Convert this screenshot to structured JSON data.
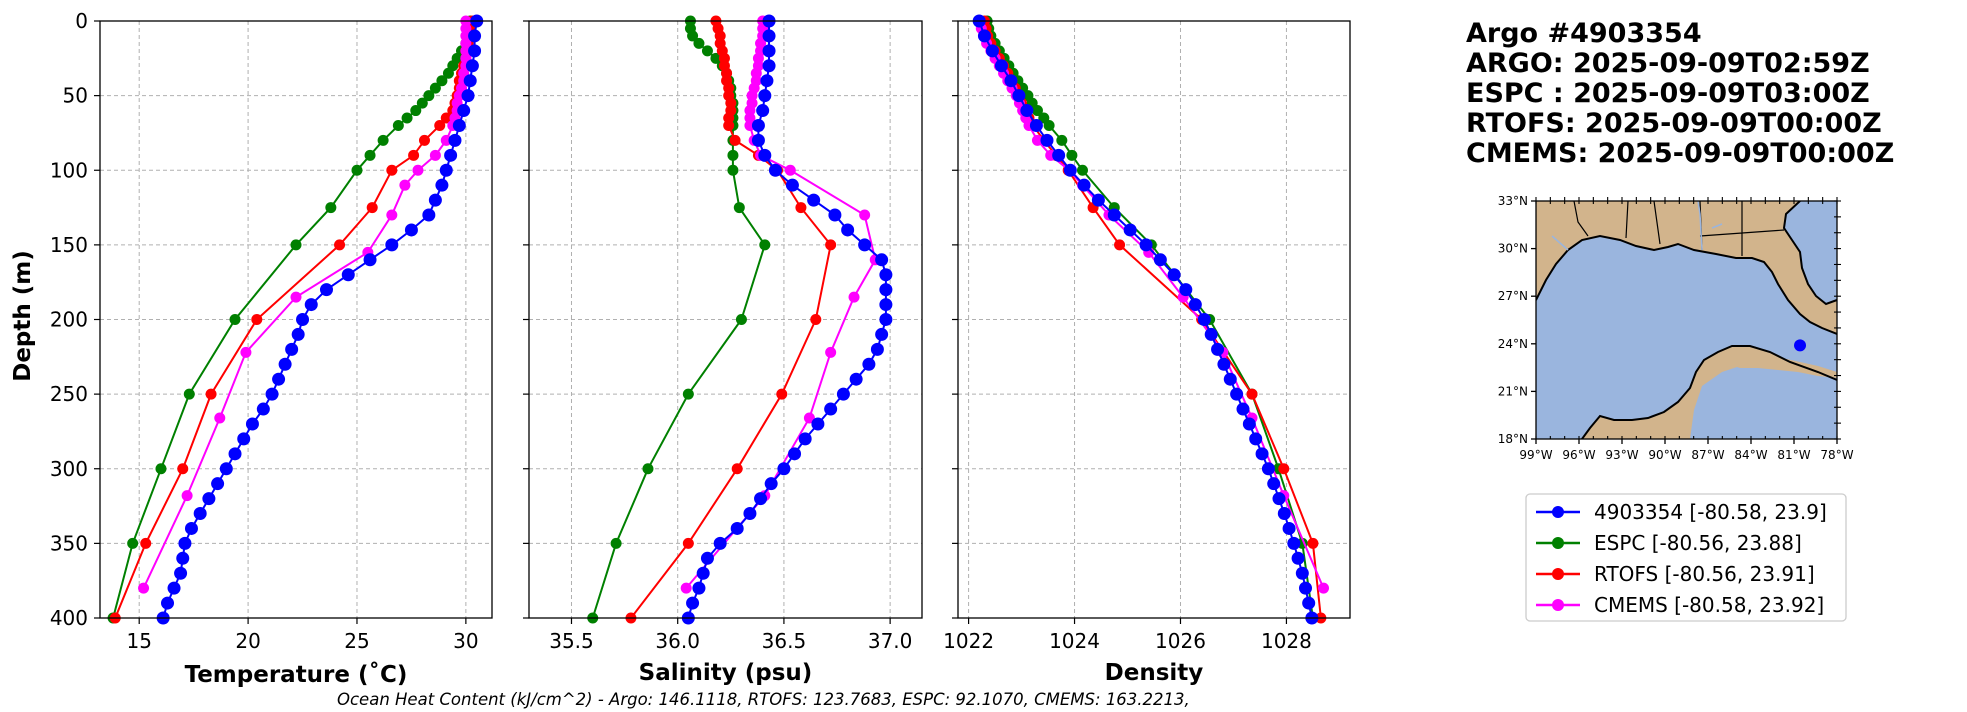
{
  "info": {
    "lines": [
      "Argo #4903354",
      "ARGO: 2025-09-09T02:59Z",
      "ESPC : 2025-09-09T03:00Z",
      "RTOFS: 2025-09-09T00:00Z",
      "CMEMS: 2025-09-09T00:00Z"
    ]
  },
  "footer": "Ocean Heat Content (kJ/cm^2) - Argo: 146.1118,  RTOFS: 123.7683,  ESPC: 92.1070,  CMEMS: 163.2213,",
  "colors": {
    "argo": "#0000ff",
    "espc": "#008000",
    "rtofs": "#ff0000",
    "cmems": "#ff00ff",
    "land": "#d2b48c",
    "ocean": "#9ab5de"
  },
  "legend": [
    {
      "key": "argo",
      "label": "4903354 [-80.58, 23.9]"
    },
    {
      "key": "espc",
      "label": "ESPC [-80.56, 23.88]"
    },
    {
      "key": "rtofs",
      "label": "RTOFS [-80.56, 23.91]"
    },
    {
      "key": "cmems",
      "label": "CMEMS [-80.58, 23.92]"
    }
  ],
  "map": {
    "lat_ticks": [
      "33°N",
      "30°N",
      "27°N",
      "24°N",
      "21°N",
      "18°N"
    ],
    "lon_ticks": [
      "99°W",
      "96°W",
      "93°W",
      "90°W",
      "87°W",
      "84°W",
      "81°W",
      "78°W"
    ],
    "lon_range": [
      -99,
      -78
    ],
    "lat_range": [
      18,
      33
    ],
    "float_position": {
      "lon": -80.58,
      "lat": 23.9
    }
  },
  "chart_data": [
    {
      "type": "line",
      "title": "",
      "xlabel": "Temperature (˚C)",
      "ylabel": "Depth (m)",
      "xlim": [
        13.2,
        31.2
      ],
      "ylim": [
        400,
        0
      ],
      "xticks": [
        15,
        20,
        25,
        30
      ],
      "yticks": [
        0,
        50,
        100,
        150,
        200,
        250,
        300,
        350,
        400
      ],
      "grid": true,
      "series": [
        {
          "name": "ESPC",
          "key": "espc",
          "marker_size": 5.5,
          "depth": [
            0,
            5,
            10,
            15,
            20,
            25,
            30,
            35,
            40,
            45,
            50,
            55,
            60,
            65,
            70,
            80,
            90,
            100,
            125,
            150,
            200,
            250,
            300,
            350,
            400
          ],
          "values": [
            30.2,
            30.2,
            30.1,
            30.0,
            29.8,
            29.6,
            29.4,
            29.2,
            28.9,
            28.6,
            28.3,
            28.0,
            27.7,
            27.3,
            26.9,
            26.2,
            25.6,
            25.0,
            23.8,
            22.2,
            19.4,
            17.3,
            16.0,
            14.7,
            13.8
          ]
        },
        {
          "name": "RTOFS",
          "key": "rtofs",
          "marker_size": 5.5,
          "depth": [
            0,
            5,
            10,
            15,
            20,
            25,
            30,
            35,
            40,
            45,
            50,
            55,
            60,
            65,
            70,
            80,
            90,
            100,
            125,
            150,
            200,
            250,
            300,
            350,
            400
          ],
          "values": [
            30.3,
            30.2,
            30.2,
            30.1,
            30.0,
            30.0,
            29.9,
            29.8,
            29.7,
            29.7,
            29.6,
            29.5,
            29.4,
            29.1,
            28.8,
            28.1,
            27.6,
            26.6,
            25.7,
            24.2,
            20.4,
            18.3,
            17.0,
            15.3,
            13.9
          ]
        },
        {
          "name": "CMEMS",
          "key": "cmems",
          "marker_size": 5.5,
          "depth": [
            0,
            5,
            10,
            15,
            20,
            25,
            30,
            35,
            40,
            45,
            50,
            55,
            60,
            65,
            70,
            80,
            90,
            100,
            110,
            130,
            155,
            185,
            222,
            266,
            318,
            380
          ],
          "values": [
            30.0,
            30.0,
            30.0,
            30.0,
            30.0,
            30.0,
            30.0,
            29.9,
            29.9,
            29.8,
            29.7,
            29.6,
            29.6,
            29.5,
            29.4,
            29.1,
            28.6,
            27.8,
            27.2,
            26.6,
            25.5,
            22.2,
            19.9,
            18.7,
            17.2,
            15.2
          ]
        },
        {
          "name": "Argo 4903354",
          "key": "argo",
          "marker_size": 6.5,
          "depth": [
            0,
            10,
            20,
            30,
            40,
            50,
            60,
            70,
            80,
            90,
            100,
            110,
            120,
            130,
            140,
            150,
            160,
            170,
            180,
            190,
            200,
            210,
            220,
            230,
            240,
            250,
            260,
            270,
            280,
            290,
            300,
            310,
            320,
            330,
            340,
            350,
            360,
            370,
            380,
            390,
            400
          ],
          "values": [
            30.5,
            30.4,
            30.4,
            30.3,
            30.2,
            30.1,
            29.9,
            29.7,
            29.5,
            29.3,
            29.1,
            28.9,
            28.6,
            28.3,
            27.5,
            26.6,
            25.6,
            24.6,
            23.6,
            22.9,
            22.5,
            22.3,
            22.0,
            21.7,
            21.4,
            21.1,
            20.7,
            20.2,
            19.8,
            19.4,
            19.0,
            18.6,
            18.2,
            17.8,
            17.4,
            17.1,
            17.0,
            16.9,
            16.6,
            16.3,
            16.1
          ]
        }
      ]
    },
    {
      "type": "line",
      "title": "",
      "xlabel": "Salinity (psu)",
      "ylabel": "",
      "xlim": [
        35.3,
        37.15
      ],
      "ylim": [
        400,
        0
      ],
      "xticks": [
        35.5,
        36.0,
        36.5,
        37.0
      ],
      "xticklabels": [
        "35.5",
        "36.0",
        "36.5",
        "37.0"
      ],
      "yticks": [
        0,
        50,
        100,
        150,
        200,
        250,
        300,
        350,
        400
      ],
      "grid": true,
      "series": [
        {
          "name": "ESPC",
          "key": "espc",
          "marker_size": 5.5,
          "depth": [
            0,
            5,
            10,
            15,
            20,
            25,
            30,
            35,
            40,
            45,
            50,
            55,
            60,
            65,
            70,
            80,
            90,
            100,
            125,
            150,
            200,
            250,
            300,
            350,
            400
          ],
          "values": [
            36.06,
            36.06,
            36.07,
            36.1,
            36.14,
            36.18,
            36.21,
            36.23,
            36.24,
            36.25,
            36.25,
            36.26,
            36.26,
            36.26,
            36.26,
            36.26,
            36.26,
            36.26,
            36.29,
            36.41,
            36.3,
            36.05,
            35.86,
            35.71,
            35.6
          ]
        },
        {
          "name": "RTOFS",
          "key": "rtofs",
          "marker_size": 5.5,
          "depth": [
            0,
            5,
            10,
            15,
            20,
            25,
            30,
            35,
            40,
            45,
            50,
            55,
            60,
            65,
            70,
            80,
            90,
            100,
            125,
            150,
            200,
            250,
            300,
            350,
            400
          ],
          "values": [
            36.18,
            36.19,
            36.2,
            36.2,
            36.21,
            36.22,
            36.22,
            36.23,
            36.23,
            36.24,
            36.24,
            36.25,
            36.25,
            36.24,
            36.24,
            36.27,
            36.38,
            36.47,
            36.58,
            36.72,
            36.65,
            36.49,
            36.28,
            36.05,
            35.78
          ]
        },
        {
          "name": "CMEMS",
          "key": "cmems",
          "marker_size": 5.5,
          "depth": [
            0,
            5,
            10,
            15,
            20,
            25,
            30,
            35,
            40,
            45,
            50,
            55,
            60,
            65,
            70,
            80,
            90,
            100,
            130,
            160,
            185,
            222,
            266,
            318,
            380
          ],
          "values": [
            36.4,
            36.4,
            36.4,
            36.39,
            36.39,
            36.38,
            36.38,
            36.37,
            36.37,
            36.36,
            36.35,
            36.35,
            36.34,
            36.34,
            36.34,
            36.36,
            36.39,
            36.53,
            36.88,
            36.93,
            36.83,
            36.72,
            36.62,
            36.41,
            36.04
          ]
        },
        {
          "name": "Argo 4903354",
          "key": "argo",
          "marker_size": 6.5,
          "depth": [
            0,
            10,
            20,
            30,
            40,
            50,
            60,
            70,
            80,
            90,
            100,
            110,
            120,
            130,
            140,
            150,
            160,
            170,
            180,
            190,
            200,
            210,
            220,
            230,
            240,
            250,
            260,
            270,
            280,
            290,
            300,
            310,
            320,
            330,
            340,
            350,
            360,
            370,
            380,
            390,
            400
          ],
          "values": [
            36.43,
            36.43,
            36.43,
            36.43,
            36.42,
            36.41,
            36.4,
            36.38,
            36.38,
            36.41,
            36.46,
            36.54,
            36.64,
            36.74,
            36.8,
            36.88,
            36.96,
            36.98,
            36.98,
            36.98,
            36.98,
            36.96,
            36.94,
            36.9,
            36.84,
            36.78,
            36.72,
            36.66,
            36.6,
            36.55,
            36.5,
            36.44,
            36.39,
            36.34,
            36.28,
            36.2,
            36.14,
            36.12,
            36.1,
            36.07,
            36.05
          ]
        }
      ]
    },
    {
      "type": "line",
      "title": "",
      "xlabel": "Density",
      "ylabel": "",
      "xlim": [
        1021.8,
        1029.2
      ],
      "ylim": [
        400,
        0
      ],
      "xticks": [
        1022,
        1024,
        1026,
        1028
      ],
      "yticks": [
        0,
        50,
        100,
        150,
        200,
        250,
        300,
        350,
        400
      ],
      "grid": true,
      "series": [
        {
          "name": "ESPC",
          "key": "espc",
          "marker_size": 5.5,
          "depth": [
            0,
            5,
            10,
            15,
            20,
            25,
            30,
            35,
            40,
            45,
            50,
            55,
            60,
            65,
            70,
            80,
            90,
            100,
            125,
            150,
            200,
            250,
            300,
            350,
            400
          ],
          "values": [
            1022.35,
            1022.38,
            1022.42,
            1022.5,
            1022.58,
            1022.67,
            1022.76,
            1022.84,
            1022.93,
            1023.02,
            1023.12,
            1023.2,
            1023.3,
            1023.42,
            1023.52,
            1023.76,
            1023.95,
            1024.15,
            1024.75,
            1025.45,
            1026.55,
            1027.35,
            1027.85,
            1028.3,
            1028.5
          ]
        },
        {
          "name": "RTOFS",
          "key": "rtofs",
          "marker_size": 5.5,
          "depth": [
            0,
            5,
            10,
            15,
            20,
            25,
            30,
            35,
            40,
            45,
            50,
            55,
            60,
            65,
            70,
            80,
            90,
            100,
            125,
            150,
            200,
            250,
            300,
            350,
            400
          ],
          "values": [
            1022.3,
            1022.33,
            1022.36,
            1022.42,
            1022.5,
            1022.58,
            1022.66,
            1022.74,
            1022.82,
            1022.88,
            1022.94,
            1023.0,
            1023.06,
            1023.14,
            1023.22,
            1023.42,
            1023.65,
            1023.88,
            1024.35,
            1024.85,
            1026.4,
            1027.35,
            1027.95,
            1028.5,
            1028.65
          ]
        },
        {
          "name": "CMEMS",
          "key": "cmems",
          "marker_size": 5.5,
          "depth": [
            0,
            5,
            10,
            15,
            20,
            25,
            30,
            35,
            40,
            45,
            50,
            55,
            60,
            65,
            70,
            80,
            90,
            100,
            110,
            130,
            155,
            185,
            222,
            266,
            318,
            380
          ],
          "values": [
            1022.2,
            1022.24,
            1022.28,
            1022.34,
            1022.42,
            1022.5,
            1022.58,
            1022.66,
            1022.74,
            1022.82,
            1022.9,
            1022.96,
            1023.02,
            1023.08,
            1023.14,
            1023.3,
            1023.55,
            1023.9,
            1024.15,
            1024.65,
            1025.4,
            1026.05,
            1026.8,
            1027.35,
            1027.95,
            1028.7
          ]
        },
        {
          "name": "Argo 4903354",
          "key": "argo",
          "marker_size": 6.5,
          "depth": [
            0,
            10,
            20,
            30,
            40,
            50,
            60,
            70,
            80,
            90,
            100,
            110,
            120,
            130,
            140,
            150,
            160,
            170,
            180,
            190,
            200,
            210,
            220,
            230,
            240,
            250,
            260,
            270,
            280,
            290,
            300,
            310,
            320,
            330,
            340,
            350,
            360,
            370,
            380,
            390,
            400
          ],
          "values": [
            1022.2,
            1022.3,
            1022.45,
            1022.62,
            1022.8,
            1022.95,
            1023.1,
            1023.28,
            1023.48,
            1023.7,
            1023.92,
            1024.18,
            1024.45,
            1024.75,
            1025.05,
            1025.35,
            1025.62,
            1025.88,
            1026.1,
            1026.28,
            1026.45,
            1026.58,
            1026.7,
            1026.82,
            1026.94,
            1027.06,
            1027.18,
            1027.3,
            1027.42,
            1027.54,
            1027.66,
            1027.76,
            1027.86,
            1027.96,
            1028.05,
            1028.14,
            1028.22,
            1028.3,
            1028.36,
            1028.42,
            1028.48
          ]
        }
      ]
    }
  ]
}
